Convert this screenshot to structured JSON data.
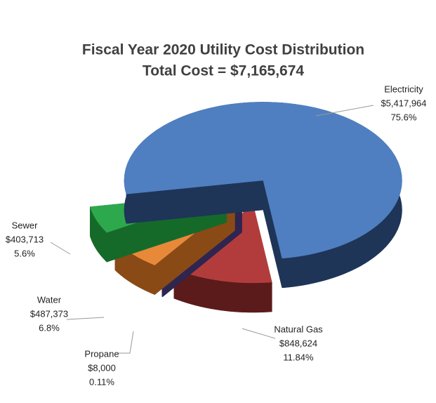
{
  "chart_data": {
    "type": "pie",
    "title": "Fiscal Year 2020 Utility Cost Distribution",
    "subtitle": "Total Cost = $7,165,674",
    "categories": [
      "Electricity",
      "Natural Gas",
      "Propane",
      "Water",
      "Sewer"
    ],
    "values": [
      5417964,
      848624,
      8000,
      487373,
      403713
    ],
    "value_labels": [
      "$5,417,964",
      "$848,624",
      "$8,000",
      "$487,373",
      "$403,713"
    ],
    "percents": [
      75.6,
      11.84,
      0.11,
      6.8,
      5.6
    ],
    "percent_labels": [
      "75.6%",
      "11.84%",
      "0.11%",
      "6.8%",
      "5.6%"
    ],
    "colors": [
      "#4f7fc0",
      "#b23c3c",
      "#5e4d8e",
      "#e8893a",
      "#2ea84c"
    ],
    "side_colors": [
      "#1e3558",
      "#5c1b1b",
      "#2e2550",
      "#8a4a16",
      "#156a2a"
    ]
  }
}
